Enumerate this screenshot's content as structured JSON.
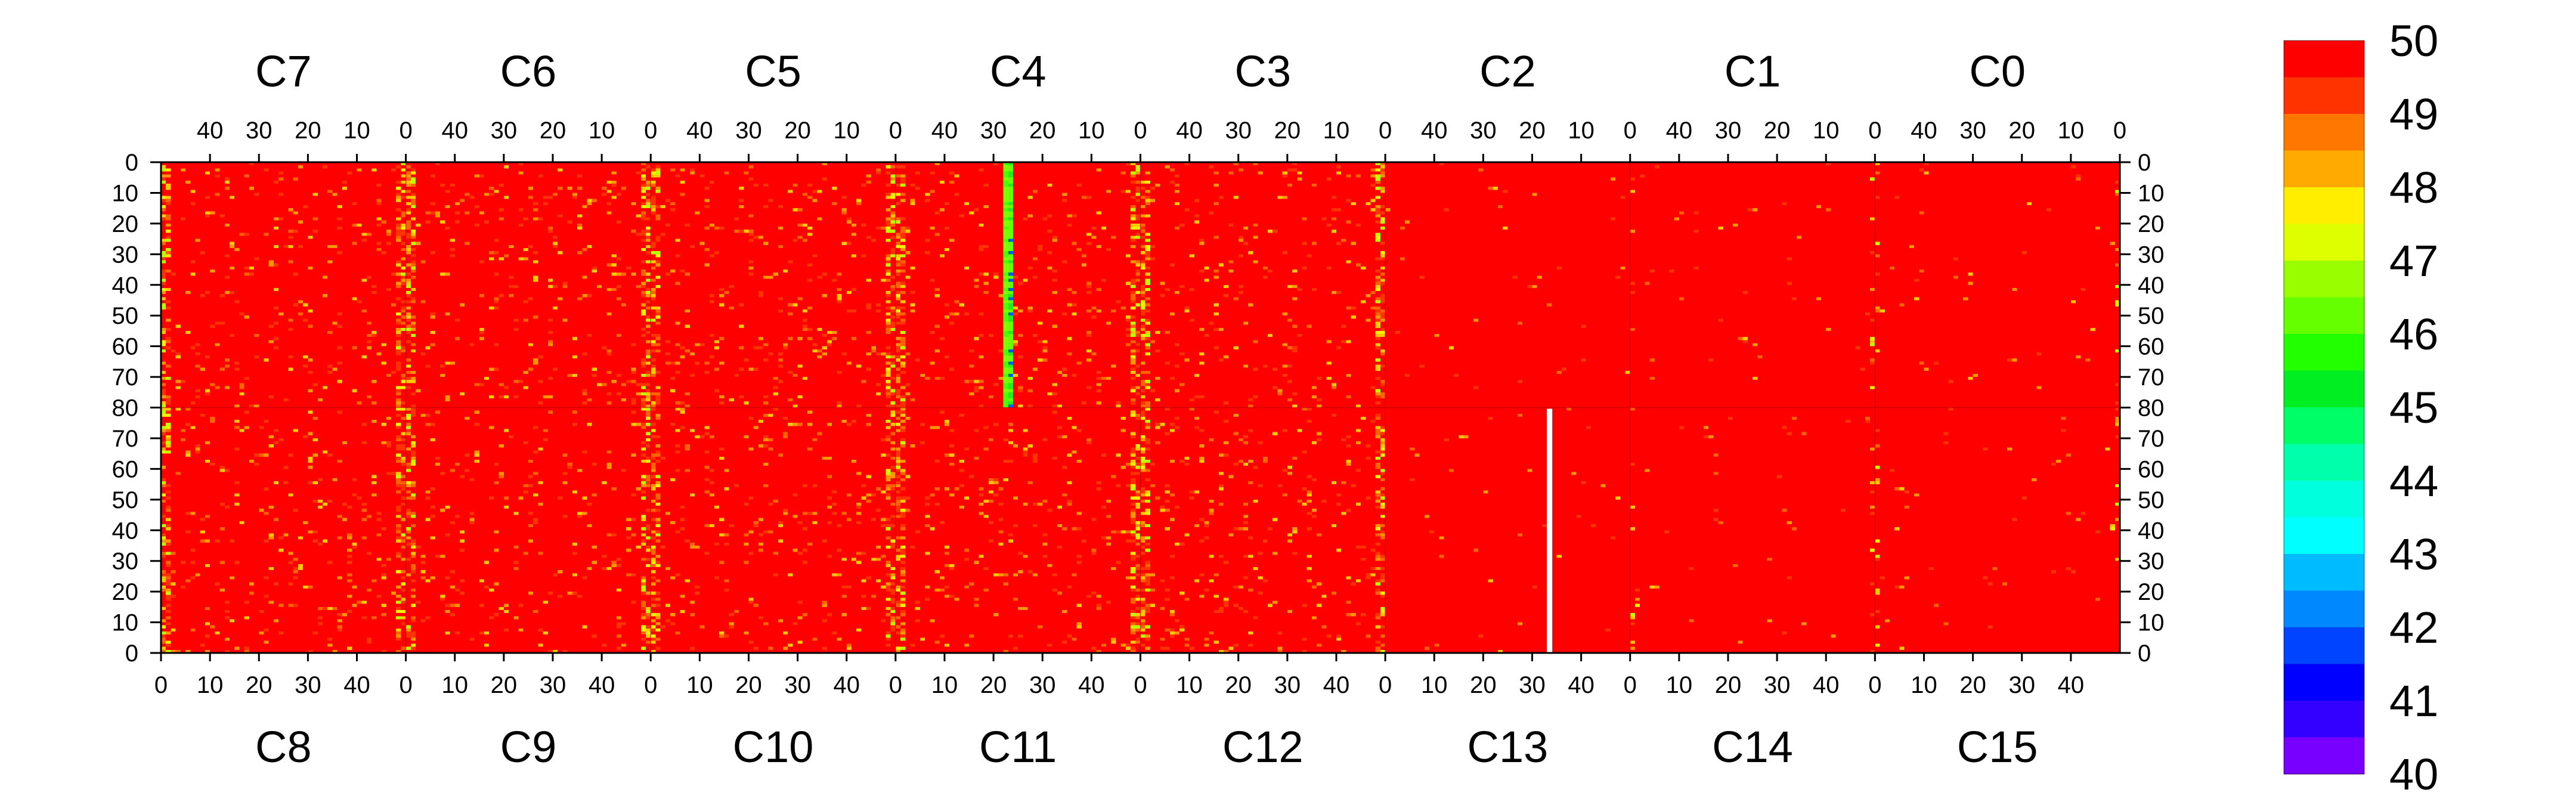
{
  "chart_data": {
    "type": "heatmap",
    "title": "",
    "xlabel": "",
    "ylabel": "",
    "panel_columns": 50,
    "rows_per_half": 80,
    "z_range": [
      40,
      50
    ],
    "colorbar": {
      "labels": [
        "50",
        "49",
        "48",
        "47",
        "46",
        "45",
        "44",
        "43",
        "42",
        "41",
        "40"
      ],
      "colors": [
        "#ff0000",
        "#ff3300",
        "#ff7700",
        "#ffaa00",
        "#ffee00",
        "#ddff00",
        "#99ff00",
        "#66ff00",
        "#22ff00",
        "#00ee22",
        "#00ff66",
        "#00ffaa",
        "#00ffdd",
        "#00ffff",
        "#00bbff",
        "#0088ff",
        "#0044ff",
        "#0000ff",
        "#3300ff",
        "#7700ff"
      ]
    },
    "top_panels": [
      "C7",
      "C6",
      "C5",
      "C4",
      "C3",
      "C2",
      "C1",
      "C0"
    ],
    "bottom_panels": [
      "C8",
      "C9",
      "C10",
      "C11",
      "C12",
      "C13",
      "C14",
      "C15"
    ],
    "top_x_ticks": [
      "40",
      "30",
      "20",
      "10",
      "0"
    ],
    "bottom_x_ticks": [
      "0",
      "10",
      "20",
      "30",
      "40"
    ],
    "left_y_ticks": [
      "0",
      "10",
      "20",
      "30",
      "40",
      "50",
      "60",
      "70",
      "80",
      "70",
      "60",
      "50",
      "40",
      "30",
      "20",
      "10",
      "0"
    ],
    "right_y_ticks": [
      "0",
      "10",
      "20",
      "30",
      "40",
      "50",
      "60",
      "70",
      "80",
      "70",
      "60",
      "50",
      "40",
      "30",
      "20",
      "10",
      "0"
    ],
    "baseline_value": 50,
    "features": [
      {
        "type": "low_column",
        "panel": "C4",
        "column": 26,
        "rows": [
          0,
          80
        ],
        "value": 46.5
      },
      {
        "type": "empty_column",
        "panel": "C13",
        "column": 33,
        "rows": [
          0,
          80
        ]
      }
    ]
  }
}
